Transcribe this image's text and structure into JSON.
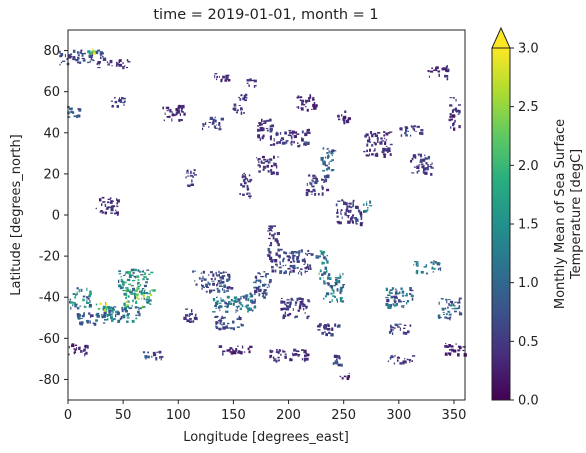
{
  "chart_data": {
    "type": "heatmap",
    "title": "time = 2019-01-01, month = 1",
    "xlabel": "Longitude [degrees_east]",
    "ylabel": "Latitude [degrees_north]",
    "xlim": [
      0,
      360
    ],
    "ylim": [
      -90,
      90
    ],
    "x_ticks": [
      0,
      50,
      100,
      150,
      200,
      250,
      300,
      350
    ],
    "y_ticks": [
      -80,
      -60,
      -40,
      -20,
      0,
      20,
      40,
      60,
      80
    ],
    "grid": false,
    "colorbar": {
      "label_line1": "Monthly Mean of Sea Surface",
      "label_line2": "Temperature [degC]",
      "vmin": 0.0,
      "vmax": 3.0,
      "extend": "max",
      "ticks": [
        "0.0",
        "0.5",
        "1.0",
        "1.5",
        "2.0",
        "2.5",
        "3.0"
      ],
      "colormap": "viridis",
      "colors": [
        "#440154",
        "#472d7b",
        "#3b528b",
        "#2c728e",
        "#21918c",
        "#28ae80",
        "#5ec962",
        "#addc30",
        "#fde725"
      ]
    },
    "patches": [
      {
        "lon": 12,
        "lat": 77,
        "w": 40,
        "h": 7,
        "value": 0.6
      },
      {
        "lon": 20,
        "lat": 80,
        "w": 8,
        "h": 2,
        "value": 2.4
      },
      {
        "lon": 40,
        "lat": 74,
        "w": 30,
        "h": 4,
        "value": 0.3
      },
      {
        "lon": 5,
        "lat": 50,
        "w": 12,
        "h": 6,
        "value": 0.8
      },
      {
        "lon": 45,
        "lat": 55,
        "w": 15,
        "h": 5,
        "value": 0.5
      },
      {
        "lon": 95,
        "lat": 50,
        "w": 20,
        "h": 8,
        "value": 0.4
      },
      {
        "lon": 140,
        "lat": 68,
        "w": 16,
        "h": 4,
        "value": 0.3
      },
      {
        "lon": 165,
        "lat": 65,
        "w": 8,
        "h": 5,
        "value": 0.4
      },
      {
        "lon": 130,
        "lat": 45,
        "w": 18,
        "h": 6,
        "value": 0.5
      },
      {
        "lon": 155,
        "lat": 55,
        "w": 12,
        "h": 10,
        "value": 0.4
      },
      {
        "lon": 178,
        "lat": 42,
        "w": 14,
        "h": 10,
        "value": 0.4
      },
      {
        "lon": 200,
        "lat": 38,
        "w": 35,
        "h": 8,
        "value": 0.5
      },
      {
        "lon": 215,
        "lat": 55,
        "w": 20,
        "h": 8,
        "value": 0.3
      },
      {
        "lon": 235,
        "lat": 27,
        "w": 12,
        "h": 12,
        "value": 0.8
      },
      {
        "lon": 250,
        "lat": 48,
        "w": 12,
        "h": 6,
        "value": 0.3
      },
      {
        "lon": 280,
        "lat": 35,
        "w": 25,
        "h": 12,
        "value": 0.4
      },
      {
        "lon": 310,
        "lat": 42,
        "w": 20,
        "h": 6,
        "value": 0.6
      },
      {
        "lon": 335,
        "lat": 70,
        "w": 20,
        "h": 6,
        "value": 0.3
      },
      {
        "lon": 350,
        "lat": 50,
        "w": 10,
        "h": 15,
        "value": 0.4
      },
      {
        "lon": 180,
        "lat": 25,
        "w": 20,
        "h": 8,
        "value": 0.4
      },
      {
        "lon": 160,
        "lat": 15,
        "w": 10,
        "h": 14,
        "value": 0.5
      },
      {
        "lon": 225,
        "lat": 15,
        "w": 20,
        "h": 10,
        "value": 0.5
      },
      {
        "lon": 255,
        "lat": 2,
        "w": 25,
        "h": 12,
        "value": 0.5
      },
      {
        "lon": 270,
        "lat": 5,
        "w": 8,
        "h": 6,
        "value": 1.2
      },
      {
        "lon": 320,
        "lat": 25,
        "w": 20,
        "h": 10,
        "value": 0.5
      },
      {
        "lon": 35,
        "lat": 5,
        "w": 20,
        "h": 8,
        "value": 0.4
      },
      {
        "lon": 110,
        "lat": 18,
        "w": 8,
        "h": 10,
        "value": 0.5
      },
      {
        "lon": 200,
        "lat": -22,
        "w": 40,
        "h": 12,
        "value": 0.6
      },
      {
        "lon": 230,
        "lat": -20,
        "w": 12,
        "h": 6,
        "value": 1.2
      },
      {
        "lon": 185,
        "lat": -10,
        "w": 10,
        "h": 10,
        "value": 0.4
      },
      {
        "lon": 60,
        "lat": -32,
        "w": 30,
        "h": 12,
        "value": 1.4
      },
      {
        "lon": 63,
        "lat": -40,
        "w": 28,
        "h": 10,
        "value": 1.8
      },
      {
        "lon": 48,
        "lat": -48,
        "w": 35,
        "h": 8,
        "value": 1.1
      },
      {
        "lon": 10,
        "lat": -40,
        "w": 20,
        "h": 10,
        "value": 1.3
      },
      {
        "lon": 20,
        "lat": -50,
        "w": 25,
        "h": 6,
        "value": 0.8
      },
      {
        "lon": 30,
        "lat": -44,
        "w": 12,
        "h": 4,
        "value": 2.4
      },
      {
        "lon": 130,
        "lat": -32,
        "w": 35,
        "h": 10,
        "value": 0.7
      },
      {
        "lon": 150,
        "lat": -42,
        "w": 40,
        "h": 10,
        "value": 1.1
      },
      {
        "lon": 175,
        "lat": -34,
        "w": 15,
        "h": 14,
        "value": 0.8
      },
      {
        "lon": 145,
        "lat": -52,
        "w": 25,
        "h": 6,
        "value": 0.6
      },
      {
        "lon": 240,
        "lat": -35,
        "w": 18,
        "h": 14,
        "value": 1.2
      },
      {
        "lon": 232,
        "lat": -28,
        "w": 10,
        "h": 6,
        "value": 1.6
      },
      {
        "lon": 205,
        "lat": -45,
        "w": 25,
        "h": 10,
        "value": 0.5
      },
      {
        "lon": 235,
        "lat": -55,
        "w": 20,
        "h": 5,
        "value": 0.5
      },
      {
        "lon": 300,
        "lat": -40,
        "w": 25,
        "h": 10,
        "value": 1.0
      },
      {
        "lon": 325,
        "lat": -25,
        "w": 25,
        "h": 6,
        "value": 1.2
      },
      {
        "lon": 300,
        "lat": -55,
        "w": 20,
        "h": 5,
        "value": 0.6
      },
      {
        "lon": 345,
        "lat": -45,
        "w": 20,
        "h": 10,
        "value": 0.9
      },
      {
        "lon": 110,
        "lat": -48,
        "w": 12,
        "h": 8,
        "value": 0.5
      },
      {
        "lon": 8,
        "lat": -65,
        "w": 18,
        "h": 6,
        "value": 0.3
      },
      {
        "lon": 75,
        "lat": -68,
        "w": 20,
        "h": 4,
        "value": 0.6
      },
      {
        "lon": 200,
        "lat": -68,
        "w": 35,
        "h": 6,
        "value": 0.4
      },
      {
        "lon": 245,
        "lat": -70,
        "w": 10,
        "h": 5,
        "value": 0.6
      },
      {
        "lon": 150,
        "lat": -65,
        "w": 30,
        "h": 4,
        "value": 0.3
      },
      {
        "lon": 300,
        "lat": -70,
        "w": 25,
        "h": 4,
        "value": 0.4
      },
      {
        "lon": 350,
        "lat": -65,
        "w": 18,
        "h": 6,
        "value": 0.3
      },
      {
        "lon": 250,
        "lat": -78,
        "w": 10,
        "h": 3,
        "value": 0.3
      }
    ]
  }
}
